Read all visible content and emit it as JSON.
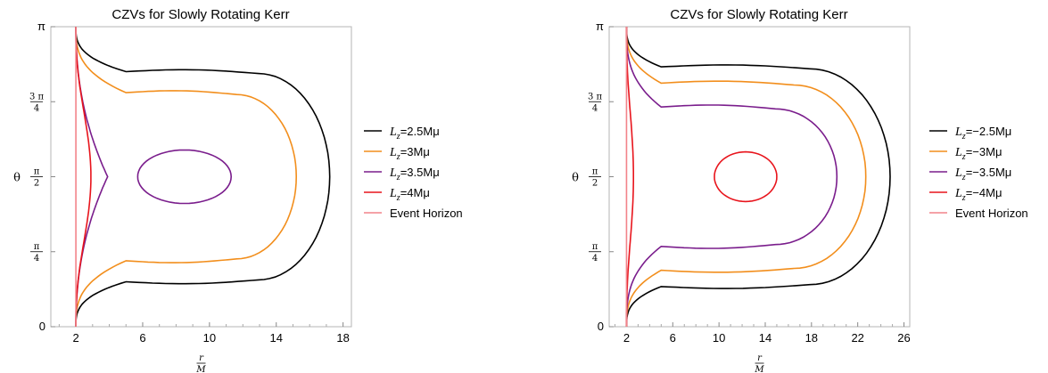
{
  "chart_data": [
    {
      "type": "line",
      "title": "CZVs for Slowly Rotating Kerr",
      "xlabel": {
        "numerator": "r",
        "denominator": "M"
      },
      "ylabel": "θ",
      "xlim": [
        0.5,
        18.5
      ],
      "ylim": [
        0,
        3.1416
      ],
      "xticks": [
        2,
        6,
        10,
        14,
        18
      ],
      "yticks": [
        {
          "value": 0,
          "label": "0"
        },
        {
          "value": 0.7854,
          "label": {
            "numerator": "π",
            "denominator": "4"
          }
        },
        {
          "value": 1.5708,
          "label": {
            "numerator": "π",
            "denominator": "2"
          }
        },
        {
          "value": 2.3562,
          "label": {
            "numerator": "3 π",
            "denominator": "4"
          }
        },
        {
          "value": 3.1416,
          "label": "π"
        }
      ],
      "legend_position": "right",
      "series": [
        {
          "name": "L_z=2.5Mμ",
          "label_main": "L",
          "label_sub": "z",
          "label_rest": "=2.5Mμ",
          "color": "#000000",
          "kind": "open",
          "inner_x": 2.0,
          "outer_x": 17.2,
          "mid_y": 1.5708,
          "half_height": 1.1,
          "neck_x": 5.0
        },
        {
          "name": "L_z=3Mμ",
          "label_main": "L",
          "label_sub": "z",
          "label_rest": "=3Mμ",
          "color": "#f28e1c",
          "kind": "open",
          "inner_x": 2.0,
          "outer_x": 15.2,
          "mid_y": 1.5708,
          "half_height": 0.88,
          "neck_x": 5.0
        },
        {
          "name": "L_z=3.5Mμ",
          "label_main": "L",
          "label_sub": "z",
          "label_rest": "=3.5Mμ",
          "color": "#7a1d8c",
          "kind": "cusp",
          "inner_x": 2.0,
          "cusp_x": 3.9,
          "mid_y": 1.5708,
          "island": {
            "cx": 8.5,
            "rx": 2.8,
            "half_height": 0.28
          }
        },
        {
          "name": "L_z=4Mμ",
          "label_main": "L",
          "label_sub": "z",
          "label_rest": "=4Mμ",
          "color": "#e8141c",
          "kind": "thin",
          "inner_x": 2.0,
          "bulge_x": 2.9,
          "mid_y": 1.5708
        },
        {
          "name": "Event Horizon",
          "label_main": "",
          "label_sub": "",
          "label_rest": "Event Horizon",
          "color": "#f2838a",
          "kind": "vline",
          "x": 2.0
        }
      ]
    },
    {
      "type": "line",
      "title": "CZVs for Slowly Rotating Kerr",
      "xlabel": {
        "numerator": "r",
        "denominator": "M"
      },
      "ylabel": "θ",
      "xlim": [
        0.5,
        26.5
      ],
      "ylim": [
        0,
        3.1416
      ],
      "xticks": [
        2,
        6,
        10,
        14,
        18,
        22,
        26
      ],
      "yticks": [
        {
          "value": 0,
          "label": "0"
        },
        {
          "value": 0.7854,
          "label": {
            "numerator": "π",
            "denominator": "4"
          }
        },
        {
          "value": 1.5708,
          "label": {
            "numerator": "π",
            "denominator": "2"
          }
        },
        {
          "value": 2.3562,
          "label": {
            "numerator": "3 π",
            "denominator": "4"
          }
        },
        {
          "value": 3.1416,
          "label": "π"
        }
      ],
      "legend_position": "right",
      "series": [
        {
          "name": "L_z=−2.5Mμ",
          "label_main": "L",
          "label_sub": "z",
          "label_rest": "=−2.5Mμ",
          "color": "#000000",
          "kind": "open",
          "inner_x": 2.0,
          "outer_x": 24.8,
          "mid_y": 1.5708,
          "half_height": 1.15,
          "neck_x": 5.0
        },
        {
          "name": "L_z=−3Mμ",
          "label_main": "L",
          "label_sub": "z",
          "label_rest": "=−3Mμ",
          "color": "#f28e1c",
          "kind": "open",
          "inner_x": 2.0,
          "outer_x": 22.7,
          "mid_y": 1.5708,
          "half_height": 0.98,
          "neck_x": 5.0
        },
        {
          "name": "L_z=−3.5Mμ",
          "label_main": "L",
          "label_sub": "z",
          "label_rest": "=−3.5Mμ",
          "color": "#7a1d8c",
          "kind": "open",
          "inner_x": 2.0,
          "outer_x": 20.2,
          "mid_y": 1.5708,
          "half_height": 0.73,
          "neck_x": 5.0
        },
        {
          "name": "L_z=−4Mμ",
          "label_main": "L",
          "label_sub": "z",
          "label_rest": "=−4Mμ",
          "color": "#e8141c",
          "kind": "thin_island",
          "inner_x": 2.0,
          "bulge_x": 2.6,
          "mid_y": 1.5708,
          "island": {
            "cx": 12.3,
            "rx": 2.7,
            "half_height": 0.26
          }
        },
        {
          "name": "Event Horizon",
          "label_main": "",
          "label_sub": "",
          "label_rest": "Event Horizon",
          "color": "#f2838a",
          "kind": "vline",
          "x": 2.0
        }
      ]
    }
  ]
}
